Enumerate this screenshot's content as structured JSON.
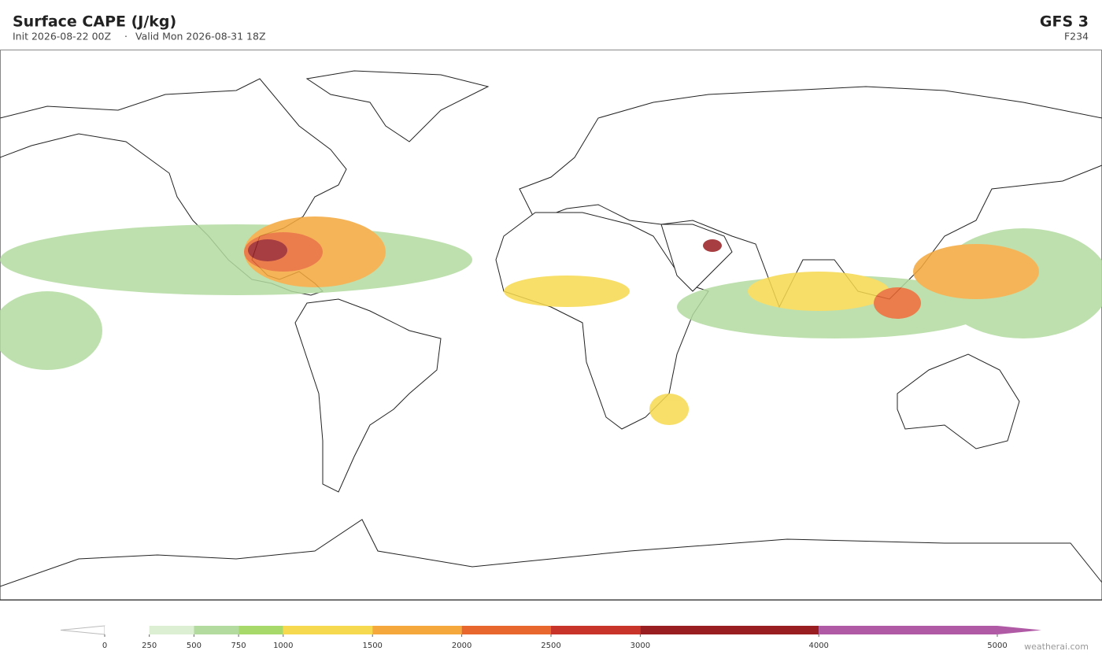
{
  "header": {
    "title": "Surface CAPE  (J/kg)",
    "init": "Init 2026-08-22 00Z",
    "separator": "·",
    "valid": "Valid Mon 2026-08-31 18Z",
    "model": "GFS  3",
    "forecast_hour": "F234"
  },
  "colorbar": {
    "lim": [
      0,
      5000
    ],
    "ticks": [
      0,
      250,
      500,
      750,
      1000,
      1500,
      2000,
      2500,
      3000,
      4000,
      5000
    ],
    "colors": [
      "#ffffff",
      "#dcefd2",
      "#b3dba0",
      "#a6d96a",
      "#f6d94f",
      "#f5a83c",
      "#e8672f",
      "#c8342a",
      "#981e22",
      "#b05aa6"
    ],
    "under_color": "#ffffff",
    "over_color": "#b05aa6"
  },
  "credit": "weatherai.com"
}
